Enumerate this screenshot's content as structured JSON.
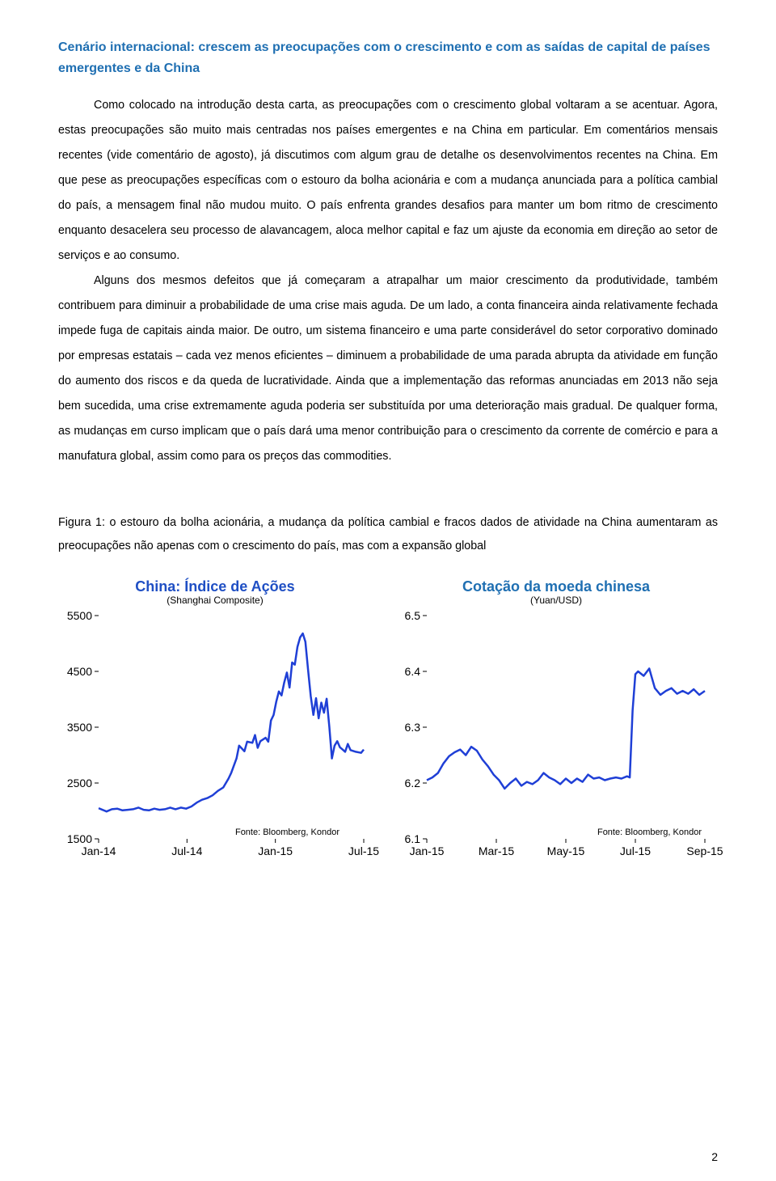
{
  "heading": "Cenário internacional: crescem as preocupações com o crescimento e com as saídas de capital de países emergentes e da China",
  "paragraphs": [
    "Como colocado na introdução desta carta, as preocupações com o crescimento global voltaram a se acentuar. Agora, estas preocupações são muito mais centradas nos países emergentes e na China em particular. Em comentários mensais recentes (vide comentário de agosto), já discutimos com algum grau de detalhe os desenvolvimentos recentes na China. Em que pese as preocupações específicas com o estouro da bolha acionária e com a mudança anunciada para a política cambial do país, a mensagem final não mudou muito. O país enfrenta grandes desafios para manter um bom ritmo de crescimento enquanto desacelera seu processo de alavancagem, aloca melhor capital e faz um ajuste da economia em direção ao setor de serviços e ao consumo.",
    "Alguns dos mesmos defeitos que já começaram a atrapalhar um maior crescimento da produtividade, também contribuem para diminuir a probabilidade de uma crise mais aguda. De um lado, a conta financeira ainda relativamente fechada impede fuga de capitais ainda maior. De outro, um sistema financeiro e uma parte considerável do setor corporativo dominado por empresas estatais – cada vez menos eficientes – diminuem a probabilidade de uma parada abrupta da atividade em função do aumento dos riscos e da queda de lucratividade. Ainda que a implementação das reformas anunciadas em 2013 não seja bem sucedida, uma crise extremamente aguda poderia ser substituída por uma deterioração mais gradual. De qualquer forma, as mudanças em curso implicam que o país dará uma menor contribuição para o crescimento da corrente de comércio e para a manufatura global, assim como para os preços das commodities."
  ],
  "figure_caption": "Figura 1: o estouro da bolha acionária, a mudança da política cambial e fracos dados de atividade na China aumentaram as preocupações não apenas com o crescimento do país, mas com a expansão global",
  "chart_left": {
    "type": "line",
    "title": "China: Índice de Ações",
    "subtitle": "(Shanghai Composite)",
    "title_color": "#1f4fc4",
    "line_color": "#1f3fd6",
    "line_width": 2.5,
    "background_color": "#ffffff",
    "axis_color": "#000000",
    "ylim": [
      1500,
      5500
    ],
    "ytick_step": 1000,
    "yticks": [
      "5500",
      "4500",
      "3500",
      "2500",
      "1500"
    ],
    "xticks": [
      "Jan-14",
      "Jul-14",
      "Jan-15",
      "Jul-15"
    ],
    "source": "Fonte: Bloomberg, Kondor",
    "series": [
      [
        0.0,
        2050
      ],
      [
        0.03,
        1990
      ],
      [
        0.05,
        2030
      ],
      [
        0.07,
        2040
      ],
      [
        0.09,
        2010
      ],
      [
        0.11,
        2020
      ],
      [
        0.13,
        2030
      ],
      [
        0.15,
        2060
      ],
      [
        0.17,
        2020
      ],
      [
        0.19,
        2010
      ],
      [
        0.21,
        2040
      ],
      [
        0.23,
        2020
      ],
      [
        0.25,
        2030
      ],
      [
        0.27,
        2060
      ],
      [
        0.29,
        2030
      ],
      [
        0.31,
        2060
      ],
      [
        0.33,
        2040
      ],
      [
        0.35,
        2080
      ],
      [
        0.37,
        2150
      ],
      [
        0.39,
        2200
      ],
      [
        0.41,
        2230
      ],
      [
        0.43,
        2280
      ],
      [
        0.45,
        2360
      ],
      [
        0.47,
        2420
      ],
      [
        0.49,
        2580
      ],
      [
        0.5,
        2680
      ],
      [
        0.52,
        2940
      ],
      [
        0.53,
        3170
      ],
      [
        0.55,
        3070
      ],
      [
        0.56,
        3240
      ],
      [
        0.58,
        3220
      ],
      [
        0.59,
        3360
      ],
      [
        0.6,
        3130
      ],
      [
        0.61,
        3250
      ],
      [
        0.63,
        3310
      ],
      [
        0.64,
        3240
      ],
      [
        0.65,
        3620
      ],
      [
        0.66,
        3720
      ],
      [
        0.67,
        3960
      ],
      [
        0.68,
        4140
      ],
      [
        0.69,
        4070
      ],
      [
        0.7,
        4300
      ],
      [
        0.71,
        4480
      ],
      [
        0.72,
        4210
      ],
      [
        0.73,
        4660
      ],
      [
        0.74,
        4620
      ],
      [
        0.75,
        4940
      ],
      [
        0.76,
        5110
      ],
      [
        0.77,
        5180
      ],
      [
        0.78,
        5030
      ],
      [
        0.79,
        4530
      ],
      [
        0.8,
        4060
      ],
      [
        0.81,
        3720
      ],
      [
        0.82,
        4020
      ],
      [
        0.83,
        3660
      ],
      [
        0.84,
        3940
      ],
      [
        0.85,
        3760
      ],
      [
        0.86,
        4010
      ],
      [
        0.87,
        3510
      ],
      [
        0.88,
        2940
      ],
      [
        0.89,
        3170
      ],
      [
        0.9,
        3250
      ],
      [
        0.91,
        3140
      ],
      [
        0.92,
        3100
      ],
      [
        0.93,
        3060
      ],
      [
        0.94,
        3200
      ],
      [
        0.95,
        3090
      ],
      [
        0.97,
        3060
      ],
      [
        0.99,
        3040
      ],
      [
        1.0,
        3100
      ]
    ]
  },
  "chart_right": {
    "type": "line",
    "title": "Cotação da moeda chinesa",
    "subtitle": "(Yuan/USD)",
    "title_color": "#1f6fb2",
    "line_color": "#1f3fd6",
    "line_width": 2.5,
    "background_color": "#ffffff",
    "axis_color": "#000000",
    "ylim": [
      6.1,
      6.5
    ],
    "ytick_step": 0.1,
    "yticks": [
      "6.5",
      "6.4",
      "6.3",
      "6.2",
      "6.1"
    ],
    "xticks": [
      "Jan-15",
      "Mar-15",
      "May-15",
      "Jul-15",
      "Sep-15"
    ],
    "source": "Fonte: Bloomberg, Kondor",
    "series": [
      [
        0.0,
        6.205
      ],
      [
        0.02,
        6.21
      ],
      [
        0.04,
        6.218
      ],
      [
        0.06,
        6.235
      ],
      [
        0.08,
        6.248
      ],
      [
        0.1,
        6.255
      ],
      [
        0.12,
        6.26
      ],
      [
        0.14,
        6.25
      ],
      [
        0.16,
        6.265
      ],
      [
        0.18,
        6.258
      ],
      [
        0.2,
        6.242
      ],
      [
        0.22,
        6.23
      ],
      [
        0.24,
        6.215
      ],
      [
        0.26,
        6.205
      ],
      [
        0.28,
        6.19
      ],
      [
        0.3,
        6.2
      ],
      [
        0.32,
        6.208
      ],
      [
        0.34,
        6.195
      ],
      [
        0.36,
        6.202
      ],
      [
        0.38,
        6.198
      ],
      [
        0.4,
        6.205
      ],
      [
        0.42,
        6.218
      ],
      [
        0.44,
        6.21
      ],
      [
        0.46,
        6.205
      ],
      [
        0.48,
        6.198
      ],
      [
        0.5,
        6.208
      ],
      [
        0.52,
        6.2
      ],
      [
        0.54,
        6.208
      ],
      [
        0.56,
        6.202
      ],
      [
        0.58,
        6.215
      ],
      [
        0.6,
        6.208
      ],
      [
        0.62,
        6.21
      ],
      [
        0.64,
        6.205
      ],
      [
        0.66,
        6.208
      ],
      [
        0.68,
        6.21
      ],
      [
        0.7,
        6.208
      ],
      [
        0.72,
        6.212
      ],
      [
        0.73,
        6.21
      ],
      [
        0.74,
        6.33
      ],
      [
        0.75,
        6.395
      ],
      [
        0.76,
        6.4
      ],
      [
        0.78,
        6.392
      ],
      [
        0.8,
        6.405
      ],
      [
        0.82,
        6.37
      ],
      [
        0.84,
        6.358
      ],
      [
        0.86,
        6.365
      ],
      [
        0.88,
        6.37
      ],
      [
        0.9,
        6.36
      ],
      [
        0.92,
        6.365
      ],
      [
        0.94,
        6.36
      ],
      [
        0.96,
        6.368
      ],
      [
        0.98,
        6.358
      ],
      [
        1.0,
        6.365
      ]
    ]
  },
  "page_number": "2"
}
